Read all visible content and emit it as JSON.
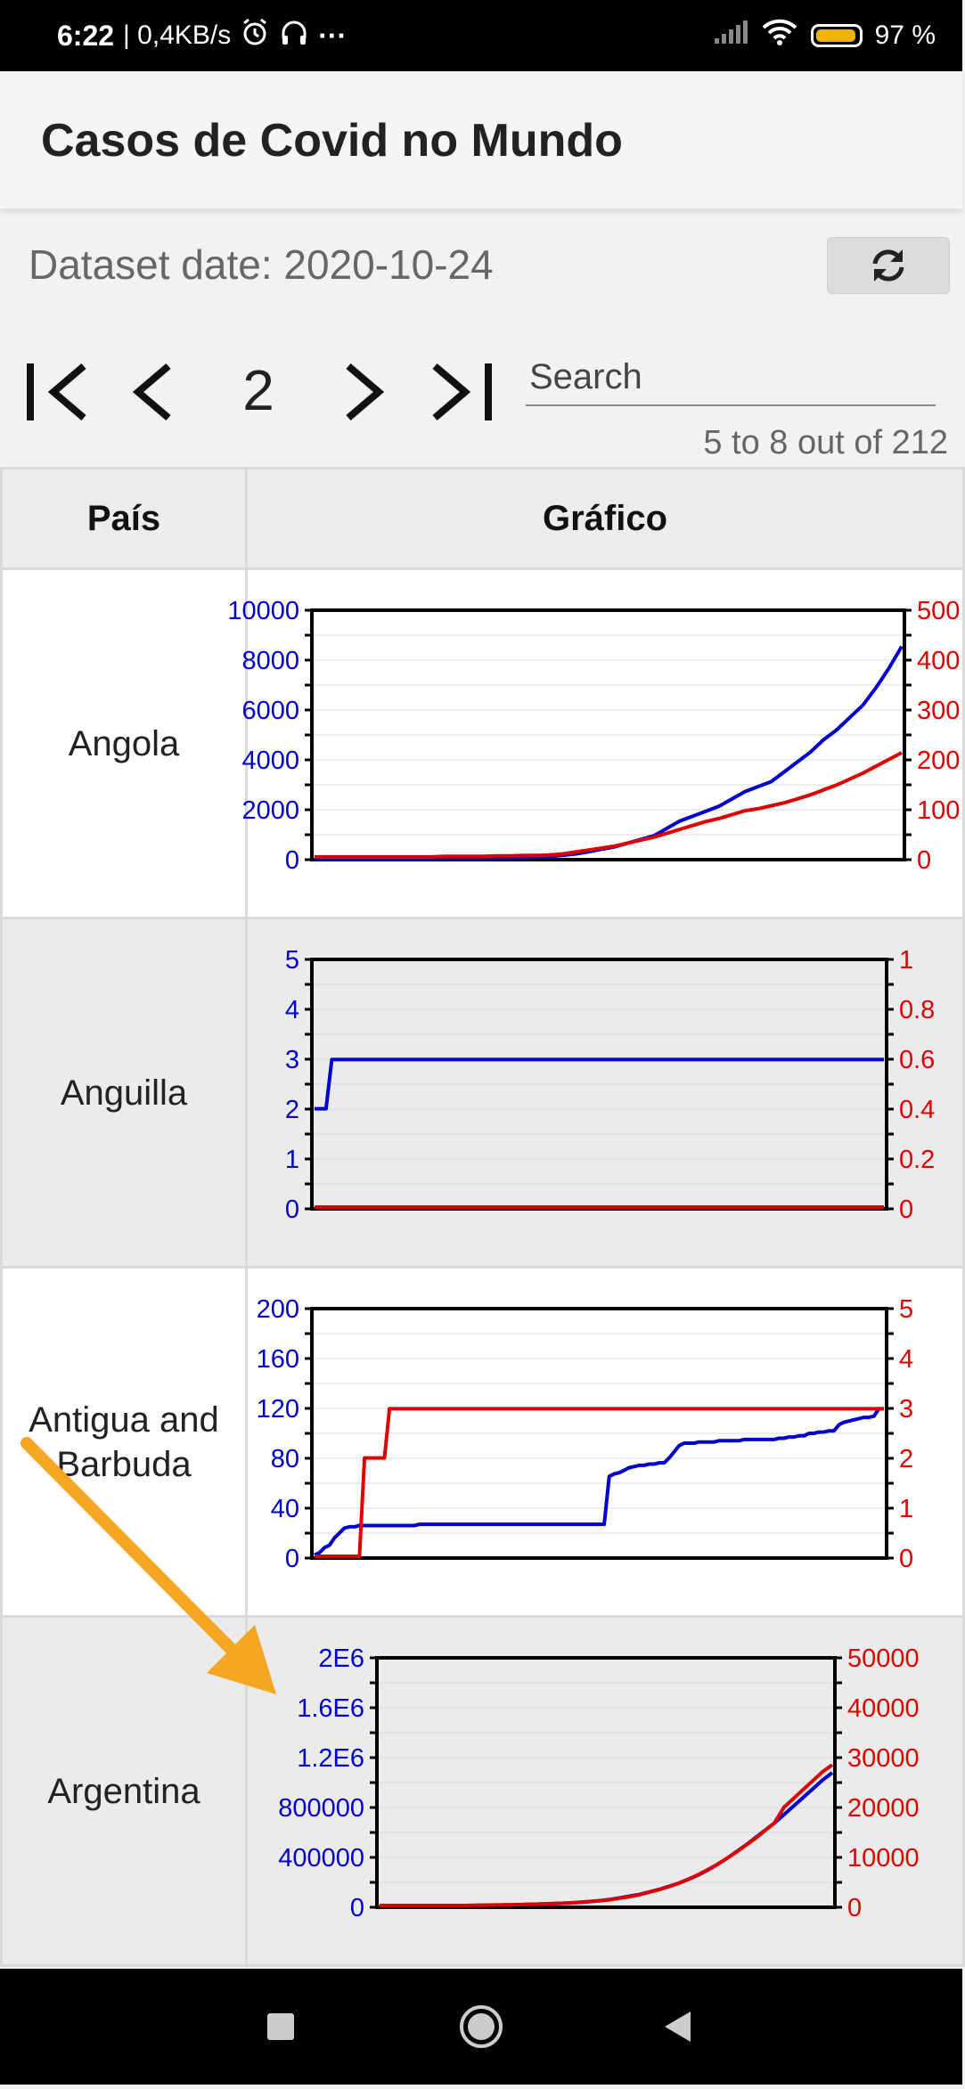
{
  "status_bar": {
    "time": "6:22",
    "network_speed": "| 0,4KB/s",
    "more": "···",
    "battery_percent": "97",
    "battery_level": 0.97
  },
  "app": {
    "title": "Casos de Covid no Mundo"
  },
  "dataset": {
    "date_label": "Dataset date: 2020-10-24"
  },
  "pager": {
    "current_page": "2",
    "search_placeholder": "Search",
    "count_text": "5 to 8 out of 212"
  },
  "table": {
    "headers": [
      "País",
      "Gráfico"
    ],
    "rows": [
      {
        "country": "Angola"
      },
      {
        "country": "Anguilla"
      },
      {
        "country": "Antigua and Barbuda"
      },
      {
        "country": "Argentina"
      }
    ]
  },
  "colors": {
    "cases": "#0000cc",
    "deaths": "#dd0000",
    "annotation_arrow": "#f5a623"
  },
  "chart_data": [
    {
      "type": "line",
      "country": "Angola",
      "left_ticks": [
        "10000",
        "8000",
        "6000",
        "4000",
        "2000",
        "0"
      ],
      "right_ticks": [
        "500",
        "400",
        "300",
        "200",
        "100",
        "0"
      ],
      "y_left_lim": [
        0,
        10000
      ],
      "y_right_lim": [
        0,
        500
      ],
      "grid": true,
      "series": [
        {
          "axis": "left",
          "color": "#0000cc",
          "values": [
            0,
            0,
            0,
            0,
            0,
            0,
            0,
            0,
            0,
            0,
            0,
            0,
            0,
            0,
            0,
            5,
            15,
            30,
            60,
            100,
            160,
            250,
            350,
            450,
            600,
            750,
            900,
            1200,
            1500,
            1700,
            1900,
            2100,
            2400,
            2700,
            2900,
            3100,
            3500,
            3900,
            4300,
            4800,
            5200,
            5700,
            6200,
            6900,
            7700,
            8600
          ]
        },
        {
          "axis": "right",
          "color": "#dd0000",
          "values": [
            2,
            2,
            2,
            2,
            2,
            2,
            2,
            2,
            2,
            2,
            3,
            3,
            3,
            3,
            4,
            4,
            5,
            5,
            6,
            8,
            12,
            16,
            20,
            24,
            30,
            36,
            42,
            50,
            58,
            66,
            74,
            80,
            88,
            96,
            100,
            106,
            112,
            120,
            128,
            138,
            148,
            160,
            172,
            186,
            200,
            214
          ]
        }
      ]
    },
    {
      "type": "line",
      "country": "Anguilla",
      "left_ticks": [
        "5",
        "4",
        "3",
        "2",
        "1",
        "0"
      ],
      "right_ticks": [
        "1",
        "0.8",
        "0.6",
        "0.4",
        "0.2",
        "0"
      ],
      "y_left_lim": [
        0,
        5
      ],
      "y_right_lim": [
        0,
        1
      ],
      "grid": true,
      "series": [
        {
          "axis": "left",
          "color": "#0000cc",
          "values": [
            2,
            2,
            2,
            3,
            3,
            3,
            3,
            3,
            3,
            3,
            3,
            3,
            3,
            3,
            3,
            3,
            3,
            3,
            3,
            3,
            3,
            3,
            3,
            3,
            3,
            3,
            3,
            3,
            3,
            3,
            3,
            3,
            3,
            3,
            3,
            3,
            3,
            3,
            3,
            3,
            3,
            3,
            3,
            3,
            3,
            3,
            3,
            3,
            3,
            3,
            3,
            3,
            3,
            3,
            3,
            3,
            3,
            3,
            3,
            3,
            3,
            3,
            3,
            3,
            3,
            3,
            3,
            3,
            3,
            3,
            3,
            3,
            3,
            3,
            3,
            3,
            3,
            3,
            3,
            3,
            3,
            3,
            3,
            3,
            3,
            3,
            3,
            3,
            3,
            3,
            3,
            3,
            3,
            3,
            3,
            3,
            3,
            3,
            3,
            3
          ]
        },
        {
          "axis": "right",
          "color": "#dd0000",
          "values": [
            0,
            0,
            0,
            0,
            0,
            0,
            0,
            0,
            0,
            0,
            0,
            0,
            0,
            0,
            0,
            0,
            0,
            0,
            0,
            0,
            0,
            0,
            0,
            0,
            0,
            0,
            0,
            0,
            0,
            0,
            0,
            0,
            0,
            0,
            0,
            0,
            0,
            0,
            0,
            0,
            0,
            0,
            0,
            0,
            0,
            0,
            0,
            0,
            0,
            0,
            0,
            0,
            0,
            0,
            0,
            0,
            0,
            0,
            0,
            0,
            0,
            0,
            0,
            0,
            0,
            0,
            0,
            0,
            0,
            0,
            0,
            0,
            0,
            0,
            0,
            0,
            0,
            0,
            0,
            0,
            0,
            0,
            0,
            0,
            0,
            0,
            0,
            0,
            0,
            0,
            0,
            0,
            0,
            0,
            0,
            0,
            0,
            0,
            0,
            0
          ]
        }
      ]
    },
    {
      "type": "line",
      "country": "Antigua and Barbuda",
      "left_ticks": [
        "200",
        "160",
        "120",
        "80",
        "40",
        "0"
      ],
      "right_ticks": [
        "5",
        "4",
        "3",
        "2",
        "1",
        "0"
      ],
      "y_left_lim": [
        0,
        200
      ],
      "y_right_lim": [
        0,
        5
      ],
      "grid": true,
      "series": [
        {
          "axis": "left",
          "color": "#0000cc",
          "values": [
            1,
            3,
            7,
            9,
            15,
            19,
            23,
            24,
            24,
            25,
            25,
            25,
            25,
            25,
            25,
            25,
            25,
            25,
            25,
            25,
            25,
            26,
            26,
            26,
            26,
            26,
            26,
            26,
            26,
            26,
            26,
            26,
            26,
            26,
            26,
            26,
            26,
            26,
            26,
            26,
            26,
            26,
            26,
            26,
            26,
            26,
            26,
            26,
            26,
            26,
            26,
            26,
            26,
            26,
            26,
            26,
            26,
            26,
            26,
            65,
            67,
            68,
            70,
            72,
            73,
            74,
            74,
            75,
            75,
            76,
            76,
            80,
            85,
            90,
            92,
            92,
            92,
            93,
            93,
            93,
            93,
            94,
            94,
            94,
            94,
            94,
            95,
            95,
            95,
            95,
            95,
            95,
            95,
            96,
            96,
            97,
            97,
            98,
            98,
            100,
            100,
            101,
            101,
            102,
            102,
            107,
            109,
            110,
            111,
            112,
            113,
            113,
            114,
            120,
            120
          ]
        },
        {
          "axis": "right",
          "color": "#dd0000",
          "values": [
            0,
            0,
            0,
            0,
            0,
            0,
            0,
            0,
            0,
            0,
            2,
            2,
            2,
            2,
            2,
            3,
            3,
            3,
            3,
            3,
            3,
            3,
            3,
            3,
            3,
            3,
            3,
            3,
            3,
            3,
            3,
            3,
            3,
            3,
            3,
            3,
            3,
            3,
            3,
            3,
            3,
            3,
            3,
            3,
            3,
            3,
            3,
            3,
            3,
            3,
            3,
            3,
            3,
            3,
            3,
            3,
            3,
            3,
            3,
            3,
            3,
            3,
            3,
            3,
            3,
            3,
            3,
            3,
            3,
            3,
            3,
            3,
            3,
            3,
            3,
            3,
            3,
            3,
            3,
            3,
            3,
            3,
            3,
            3,
            3,
            3,
            3,
            3,
            3,
            3,
            3,
            3,
            3,
            3,
            3,
            3,
            3,
            3,
            3,
            3,
            3,
            3,
            3,
            3,
            3,
            3,
            3,
            3,
            3,
            3,
            3,
            3,
            3,
            3,
            3
          ]
        }
      ]
    },
    {
      "type": "line",
      "country": "Argentina",
      "left_ticks": [
        "2E6",
        "1.6E6",
        "1.2E6",
        "800000",
        "400000",
        "0"
      ],
      "right_ticks": [
        "50000",
        "40000",
        "30000",
        "20000",
        "10000",
        "0"
      ],
      "y_left_lim": [
        0,
        2000000
      ],
      "y_right_lim": [
        0,
        50000
      ],
      "grid": true,
      "series": [
        {
          "axis": "left",
          "color": "#0000cc",
          "values": [
            0,
            0,
            0,
            0,
            0,
            0,
            0,
            0,
            0,
            0,
            1000,
            2000,
            3000,
            4000,
            6000,
            8000,
            10000,
            12000,
            15000,
            18000,
            22000,
            27000,
            33000,
            40000,
            50000,
            62000,
            76000,
            90000,
            110000,
            130000,
            155000,
            180000,
            210000,
            245000,
            285000,
            330000,
            380000,
            435000,
            490000,
            550000,
            610000,
            670000,
            740000,
            810000,
            880000,
            950000,
            1020000,
            1080000
          ]
        },
        {
          "axis": "right",
          "color": "#dd0000",
          "values": [
            0,
            0,
            0,
            0,
            0,
            0,
            0,
            0,
            0,
            0,
            50,
            80,
            100,
            120,
            150,
            200,
            250,
            300,
            380,
            450,
            550,
            680,
            820,
            1000,
            1200,
            1500,
            1800,
            2200,
            2700,
            3200,
            3800,
            4500,
            5300,
            6200,
            7200,
            8300,
            9500,
            10800,
            12200,
            13600,
            15200,
            16800,
            20000,
            21800,
            23600,
            25400,
            27200,
            28600
          ]
        }
      ]
    }
  ]
}
